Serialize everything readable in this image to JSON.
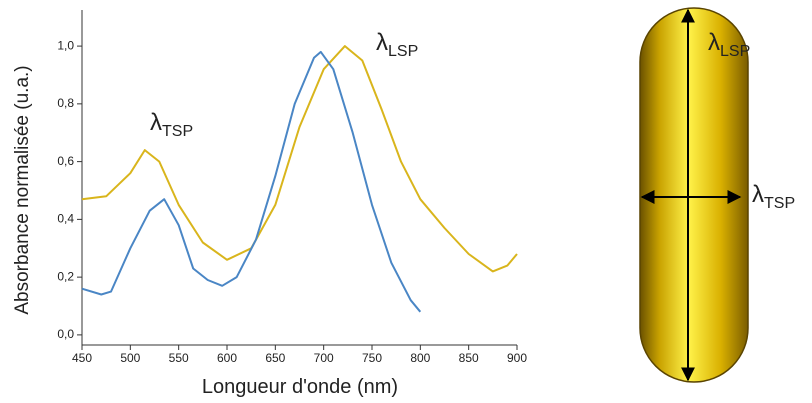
{
  "chart_data": {
    "type": "line",
    "x_label": "Longueur d'onde (nm)",
    "y_label": "Absorbance normalisée (u.a.)",
    "xlim": [
      450,
      900
    ],
    "xticks": [
      450,
      500,
      550,
      600,
      650,
      700,
      750,
      800,
      850,
      900
    ],
    "ylim": [
      -0.035,
      1.125
    ],
    "yticks": [
      {
        "value": 0,
        "label": "0,0"
      },
      {
        "value": 0.2,
        "label": "0,2"
      },
      {
        "value": 0.4,
        "label": "0,4"
      },
      {
        "value": 0.6,
        "label": "0,6"
      },
      {
        "value": 0.8,
        "label": "0,8"
      },
      {
        "value": 1.0,
        "label": "1,0"
      }
    ],
    "series": [
      {
        "color": "#d9b51c",
        "x": [
          450,
          475,
          500,
          515,
          530,
          550,
          575,
          600,
          625,
          650,
          675,
          700,
          722,
          740,
          760,
          780,
          800,
          825,
          850,
          875,
          890,
          900
        ],
        "values": [
          0.47,
          0.48,
          0.56,
          0.64,
          0.6,
          0.45,
          0.32,
          0.26,
          0.3,
          0.45,
          0.72,
          0.92,
          1.0,
          0.95,
          0.78,
          0.6,
          0.47,
          0.37,
          0.28,
          0.22,
          0.24,
          0.28
        ]
      },
      {
        "color": "#4a86c5",
        "x": [
          450,
          470,
          480,
          500,
          520,
          535,
          550,
          565,
          580,
          595,
          610,
          630,
          650,
          670,
          690,
          697,
          710,
          730,
          750,
          770,
          790,
          800
        ],
        "values": [
          0.16,
          0.14,
          0.15,
          0.3,
          0.43,
          0.47,
          0.38,
          0.23,
          0.19,
          0.17,
          0.2,
          0.33,
          0.55,
          0.8,
          0.96,
          0.98,
          0.92,
          0.7,
          0.45,
          0.25,
          0.12,
          0.08
        ]
      }
    ],
    "annotations": [
      {
        "symbol": "λ",
        "subscript": "TSP"
      },
      {
        "symbol": "λ",
        "subscript": "LSP"
      }
    ]
  },
  "diagram": {
    "labels": [
      {
        "symbol": "λ",
        "subscript": "LSP"
      },
      {
        "symbol": "λ",
        "subscript": "TSP"
      }
    ]
  }
}
